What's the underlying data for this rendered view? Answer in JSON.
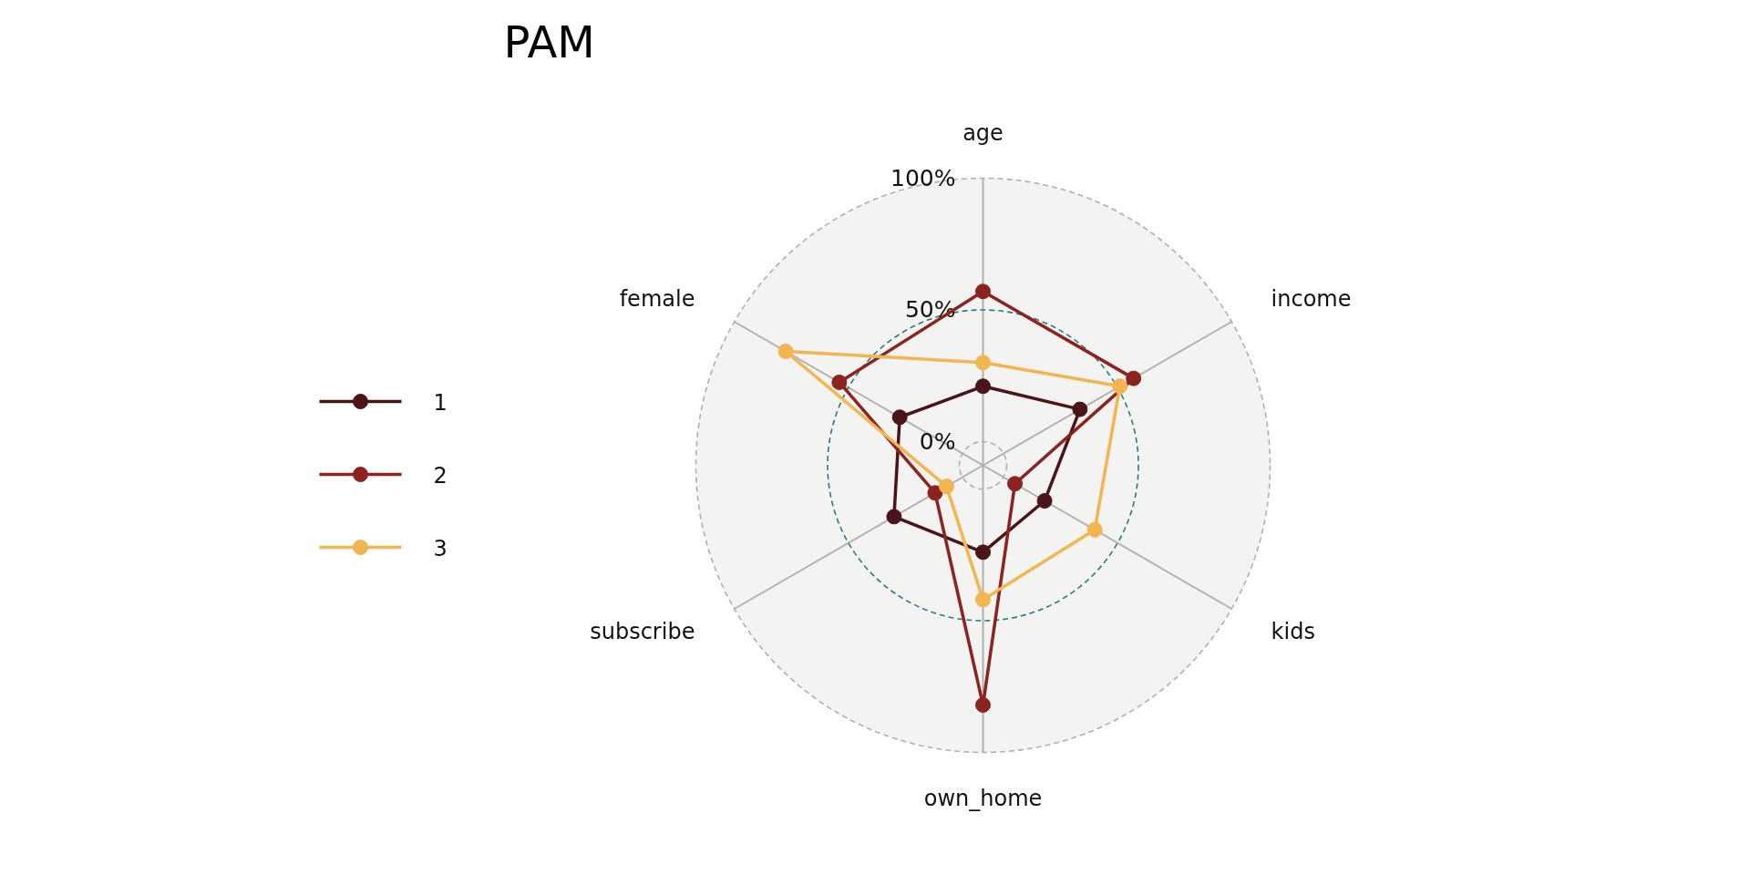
{
  "chart_data": {
    "type": "radar",
    "title": "PAM",
    "categories": [
      "age",
      "income",
      "kids",
      "own_home",
      "subscribe",
      "female"
    ],
    "series": [
      {
        "name": "1",
        "color": "#4a1419",
        "values": [
          21,
          33.5,
          18,
          24,
          30,
          27.5
        ]
      },
      {
        "name": "2",
        "color": "#8c2320",
        "values": [
          57,
          57,
          5,
          82,
          12,
          54
        ]
      },
      {
        "name": "3",
        "color": "#f2b54f",
        "values": [
          30,
          51,
          40,
          42,
          7,
          77.5
        ]
      }
    ],
    "ylim": [
      -9,
      100
    ],
    "yticks": [
      {
        "value": 0,
        "label": "0%"
      },
      {
        "value": 50,
        "label": "50%"
      },
      {
        "value": 100,
        "label": "100%"
      }
    ],
    "legend": "left",
    "marker": "circle",
    "line_style": "solid",
    "grid": true
  }
}
